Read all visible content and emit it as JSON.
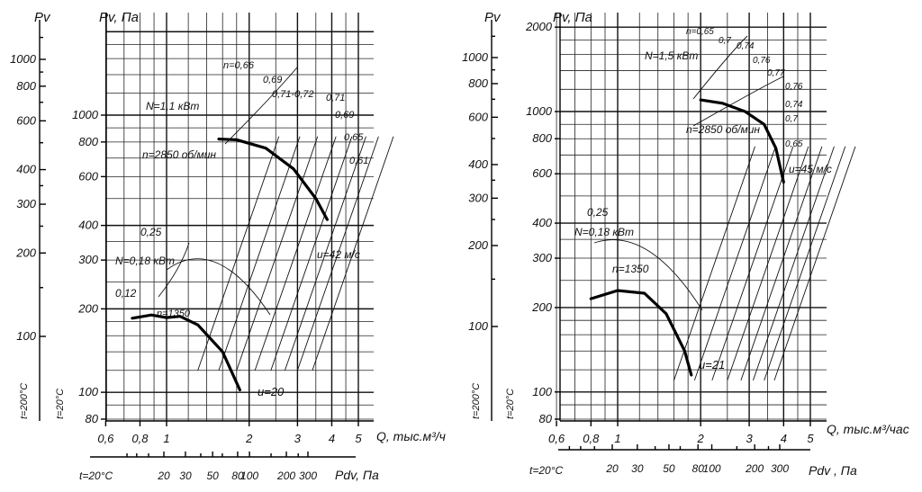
{
  "colors": {
    "line": "#111111",
    "background": "#ffffff",
    "curve": "#000000"
  },
  "chart_data": [
    {
      "type": "line",
      "left_axis_label": "Pv",
      "ylabel": "Pv, Па",
      "xlabel": "Q, тыс.м³/ч",
      "dyn_label": "Pdv, Па",
      "temp_hot": "t=200°C",
      "temp_cold": "t=20°C",
      "temp_bottom": "t=20°C",
      "left_ticks": [
        "1000",
        "800",
        "600",
        "400",
        "300",
        "200",
        "100"
      ],
      "y_ticks": [
        "1000",
        "800",
        "600",
        "400",
        "300",
        "200",
        "100",
        "80"
      ],
      "x_ticks": [
        "0,6",
        "0,8",
        "1",
        "2",
        "3",
        "4",
        "5"
      ],
      "dyn_ticks": [
        "20",
        "30",
        "50",
        "80",
        "100",
        "200",
        "300"
      ],
      "series": [
        {
          "name": "n=2850 об/мин",
          "x": [
            1.55,
            1.8,
            2.3,
            2.9,
            3.5,
            3.85
          ],
          "y": [
            820,
            815,
            760,
            640,
            500,
            420
          ]
        },
        {
          "name": "n=1350",
          "x": [
            0.75,
            0.88,
            1.0,
            1.12,
            1.3,
            1.6,
            1.85
          ],
          "y": [
            185,
            190,
            186,
            188,
            175,
            140,
            102
          ]
        }
      ],
      "labels": {
        "power_high": "N=1,1 кВт",
        "speed_high": "n=2850 об/мин",
        "power_low": "N=0,18 кВт",
        "speed_low": "n=1350",
        "velocity_high": "u=42 м/с",
        "velocity_low": "u=20",
        "eff_high": [
          "n=0,66",
          "0,69",
          "0,71-0,72",
          "0,71",
          "0,69",
          "0,65",
          "0,61"
        ],
        "eff_low": [
          "0,25",
          "0,12"
        ]
      }
    },
    {
      "type": "line",
      "left_axis_label": "Pv",
      "ylabel": "Pv, Па",
      "xlabel": "Q, тыс.м³/час",
      "dyn_label": "Pdv , Па",
      "temp_hot": "t=200°C",
      "temp_cold": "t=20°C",
      "temp_bottom": "t=20°C",
      "left_ticks": [
        "1000",
        "800",
        "600",
        "400",
        "300",
        "200",
        "100"
      ],
      "y_ticks": [
        "2000",
        "1000",
        "800",
        "600",
        "400",
        "300",
        "200",
        "100",
        "80"
      ],
      "x_ticks": [
        "0,6",
        "0,8",
        "1",
        "2",
        "3",
        "4",
        "5"
      ],
      "dyn_ticks": [
        "20",
        "30",
        "50",
        "80",
        "100",
        "200",
        "300"
      ],
      "series": [
        {
          "name": "n=2850 об/мин",
          "x": [
            2.0,
            2.4,
            2.9,
            3.4,
            3.75,
            4.0
          ],
          "y": [
            1100,
            1070,
            1000,
            900,
            740,
            560
          ]
        },
        {
          "name": "n=1350",
          "x": [
            0.8,
            1.0,
            1.25,
            1.5,
            1.75,
            1.85
          ],
          "y": [
            215,
            230,
            225,
            190,
            140,
            115
          ]
        }
      ],
      "labels": {
        "power_high": "N=1,5 кВт",
        "speed_high": "n=2850 об/мин",
        "power_low": "N=0,18 кВт",
        "speed_low": "n=1350",
        "velocity_high": "u=45 м/с",
        "velocity_low": "u=21",
        "eff_high": [
          "n=0,65",
          "0,7",
          "0,74",
          "0,76",
          "0,77",
          "0,76",
          "0,74",
          "0,7",
          "0,65"
        ],
        "eff_low": [
          "0,25"
        ]
      }
    }
  ]
}
